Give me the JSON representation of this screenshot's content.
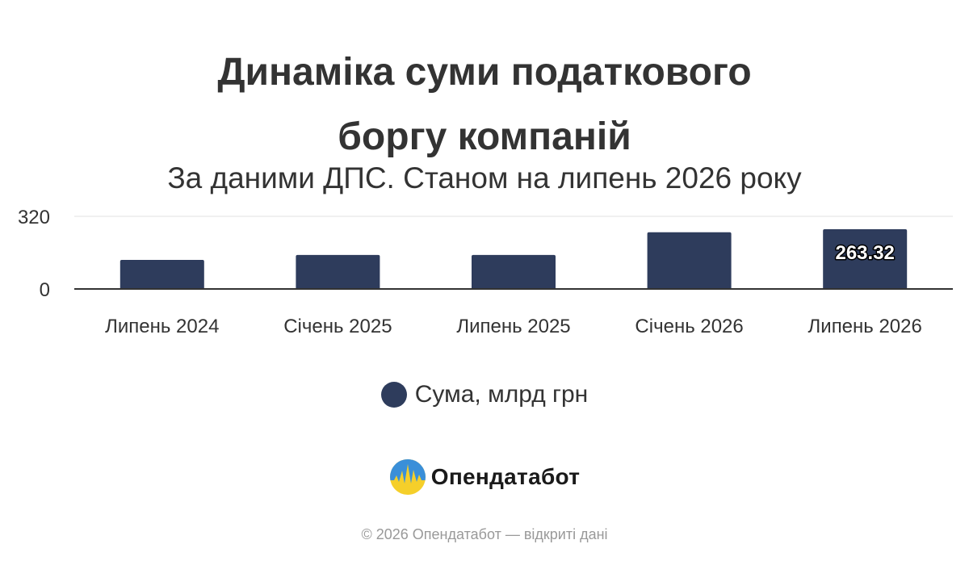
{
  "chart_data": {
    "type": "bar",
    "title_lines": [
      "Динаміка суми податкового",
      "боргу компаній"
    ],
    "subtitle": "За даними ДПС. Станом на липень 2026 року",
    "categories": [
      "Липень 2024",
      "Січень 2025",
      "Липень 2025",
      "Січень 2026",
      "Липень 2026"
    ],
    "series": [
      {
        "name": "Сума, млрд грн",
        "values": [
          128,
          150,
          150,
          250,
          263.32
        ],
        "color": "#2e3c5c"
      }
    ],
    "data_labels": [
      {
        "category": "Липень 2026",
        "text": "263.32"
      }
    ],
    "y_ticks": [
      "0",
      "320"
    ],
    "ylim": [
      0,
      320
    ],
    "grid": true,
    "legend_position": "bottom"
  },
  "brand": {
    "name": "Опендатабот",
    "logo_icon": "opendatabot-logo-icon"
  },
  "footer": "© 2026 Опендатабот — відкриті дані"
}
